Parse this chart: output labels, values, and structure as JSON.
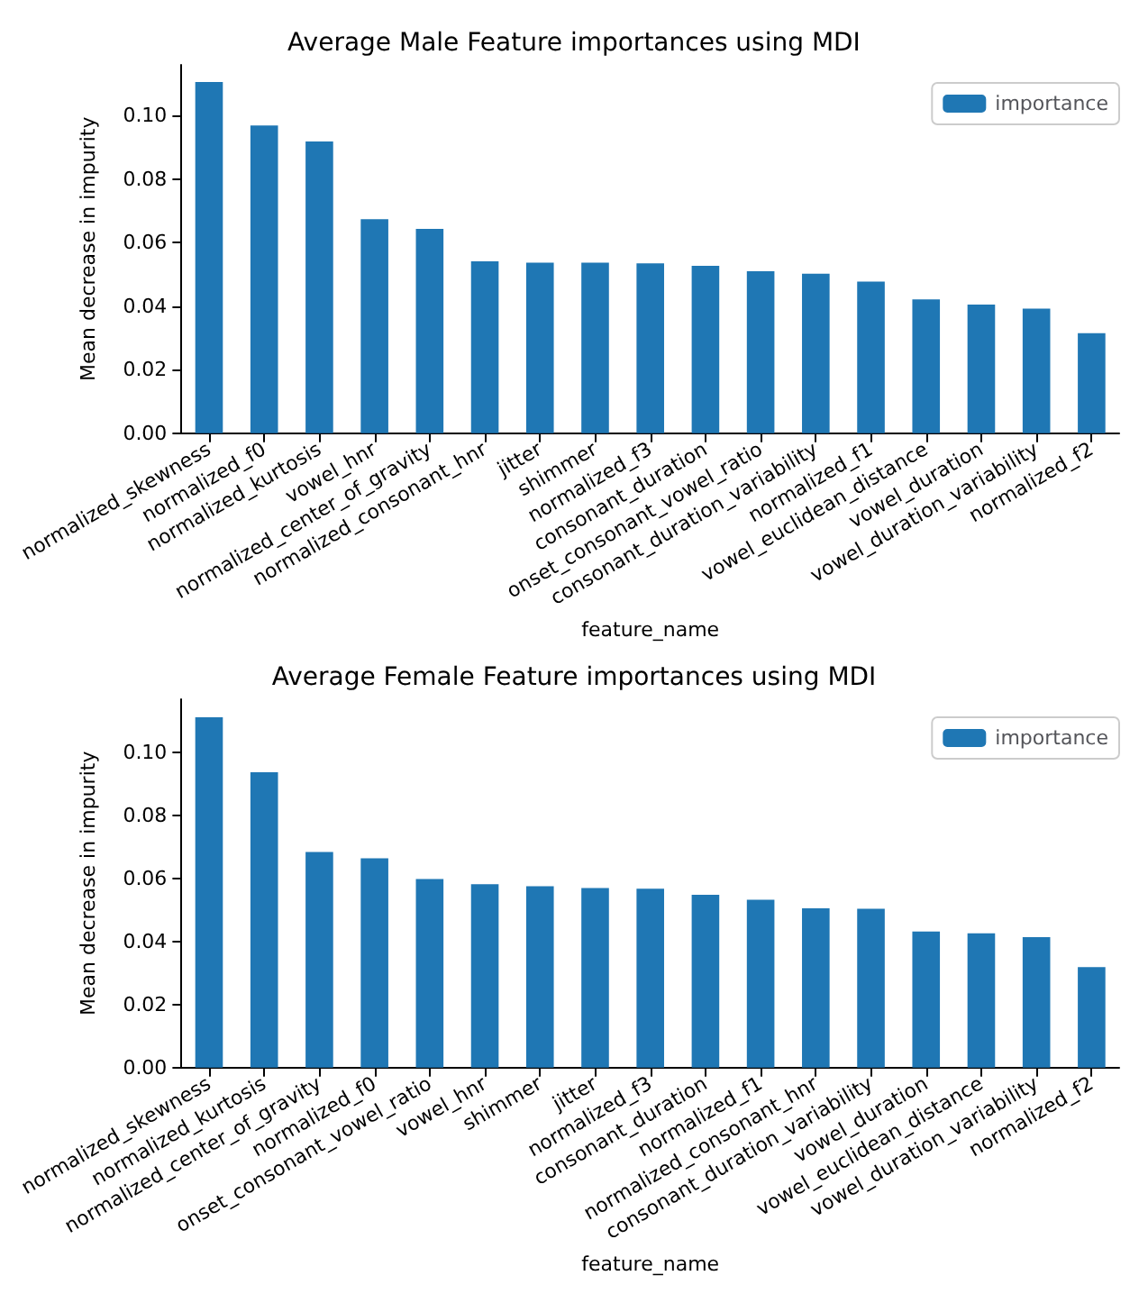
{
  "chart_data": [
    {
      "type": "bar",
      "title": "Average Male Feature importances using MDI",
      "xlabel": "feature_name",
      "ylabel": "Mean decrease in impurity",
      "categories": [
        "normalized_skewness",
        "normalized_f0",
        "normalized_kurtosis",
        "vowel_hnr",
        "normalized_center_of_gravity",
        "normalized_consonant_hnr",
        "jitter",
        "shimmer",
        "normalized_f3",
        "consonant_duration",
        "onset_consonant_vowel_ratio",
        "consonant_duration_variability",
        "normalized_f1",
        "vowel_euclidean_distance",
        "vowel_duration",
        "vowel_duration_variability",
        "normalized_f2"
      ],
      "series": [
        {
          "name": "importance",
          "color": "#1f77b4",
          "values": [
            0.1106,
            0.0969,
            0.0919,
            0.0674,
            0.0643,
            0.0541,
            0.0537,
            0.0537,
            0.0535,
            0.0527,
            0.051,
            0.0502,
            0.0477,
            0.0421,
            0.0405,
            0.0392,
            0.0315
          ]
        }
      ],
      "ylim": [
        0,
        0.116
      ],
      "yticks": [
        {
          "value": 0,
          "label": "0.00"
        },
        {
          "value": 0.02,
          "label": "0.02"
        },
        {
          "value": 0.04,
          "label": "0.04"
        },
        {
          "value": 0.06,
          "label": "0.06"
        },
        {
          "value": 0.08,
          "label": "0.08"
        },
        {
          "value": 0.1,
          "label": "0.10"
        }
      ],
      "legend": "top right",
      "grid": false
    },
    {
      "type": "bar",
      "title": "Average Female Feature importances using MDI",
      "xlabel": "feature_name",
      "ylabel": "Mean decrease in impurity",
      "categories": [
        "normalized_skewness",
        "normalized_kurtosis",
        "normalized_center_of_gravity",
        "normalized_f0",
        "onset_consonant_vowel_ratio",
        "vowel_hnr",
        "shimmer",
        "jitter",
        "normalized_f3",
        "consonant_duration",
        "normalized_f1",
        "normalized_consonant_hnr",
        "consonant_duration_variability",
        "vowel_duration",
        "vowel_euclidean_distance",
        "vowel_duration_variability",
        "normalized_f2"
      ],
      "series": [
        {
          "name": "importance",
          "color": "#1f77b4",
          "values": [
            0.1113,
            0.0938,
            0.0685,
            0.0665,
            0.0599,
            0.0582,
            0.0576,
            0.057,
            0.0568,
            0.0549,
            0.0533,
            0.0506,
            0.0504,
            0.0432,
            0.0426,
            0.0414,
            0.0319
          ]
        }
      ],
      "ylim": [
        0,
        0.117
      ],
      "yticks": [
        {
          "value": 0,
          "label": "0.00"
        },
        {
          "value": 0.02,
          "label": "0.02"
        },
        {
          "value": 0.04,
          "label": "0.04"
        },
        {
          "value": 0.06,
          "label": "0.06"
        },
        {
          "value": 0.08,
          "label": "0.08"
        },
        {
          "value": 0.1,
          "label": "0.10"
        }
      ],
      "legend": "top right",
      "grid": false
    }
  ]
}
